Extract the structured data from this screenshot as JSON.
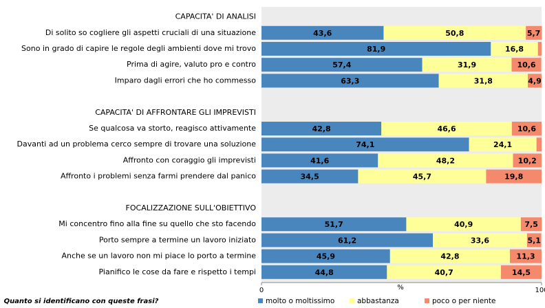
{
  "chart_data": {
    "type": "bar",
    "orientation": "horizontal",
    "stacked": true,
    "categories": [
      "CAPACITA' DI ANALISI",
      "Di solito so cogliere gli aspetti cruciali di una situazione",
      "Sono in grado di capire le regole degli ambienti dove mi trovo",
      "Prima di agire, valuto pro e contro",
      "Imparo dagli errori che ho commesso",
      null,
      "CAPACITA' DI AFFRONTARE GLI IMPREVISTI",
      "Se qualcosa va storto, reagisco attivamente",
      "Davanti ad un problema cerco sempre di trovare una soluzione",
      "Affronto con coraggio gli imprevisti",
      "Affronto i problemi senza farmi prendere dal panico",
      null,
      "FOCALIZZAZIONE SULL'OBIETTIVO",
      "Mi concentro fino alla fine su quello che sto facendo",
      "Porto sempre a termine un lavoro iniziato",
      "Anche se un lavoro non mi piace lo porto a termine",
      "Pianifico le cose da fare e rispetto i tempi"
    ],
    "series": [
      {
        "name": "molto o moltissimo",
        "color": "#4a86be",
        "label_color": "#ffffff",
        "values": [
          null,
          43.6,
          81.9,
          57.4,
          63.3,
          null,
          null,
          42.8,
          74.1,
          41.6,
          34.5,
          null,
          null,
          51.7,
          61.2,
          45.9,
          44.8
        ],
        "value_labels": [
          null,
          "43,6",
          "81,9",
          "57,4",
          "63,3",
          null,
          null,
          "42,8",
          "74,1",
          "41,6",
          "34,5",
          null,
          null,
          "51,7",
          "61,2",
          "45,9",
          "44,8"
        ]
      },
      {
        "name": "abbastanza",
        "color": "#ffff99",
        "label_color": "#000000",
        "values": [
          null,
          50.8,
          16.8,
          31.9,
          31.8,
          null,
          null,
          46.6,
          24.1,
          48.2,
          45.7,
          null,
          null,
          40.9,
          33.6,
          42.8,
          40.7
        ],
        "value_labels": [
          null,
          "50,8",
          "16,8",
          "31,9",
          "31,8",
          null,
          null,
          "46,6",
          "24,1",
          "48,2",
          "45,7",
          null,
          null,
          "40,9",
          "33,6",
          "42,8",
          "40,7"
        ]
      },
      {
        "name": "poco o per niente",
        "color": "#f4896c",
        "label_color": "#000000",
        "values": [
          null,
          5.7,
          1.3,
          10.6,
          4.9,
          null,
          null,
          10.6,
          1.8,
          10.2,
          19.8,
          null,
          null,
          7.5,
          5.1,
          11.3,
          14.5
        ],
        "value_labels": [
          null,
          "5,7",
          null,
          "10,6",
          "4,9",
          null,
          null,
          "10,6",
          null,
          "10,2",
          "19,8",
          null,
          null,
          "7,5",
          "5,1",
          "11,3",
          "14,5"
        ]
      }
    ],
    "xlabel": "%",
    "xlim": [
      0,
      100
    ],
    "xticks": [
      0,
      100
    ],
    "note": "Quanto si identificano con queste frasi?",
    "legend": "bottom"
  }
}
